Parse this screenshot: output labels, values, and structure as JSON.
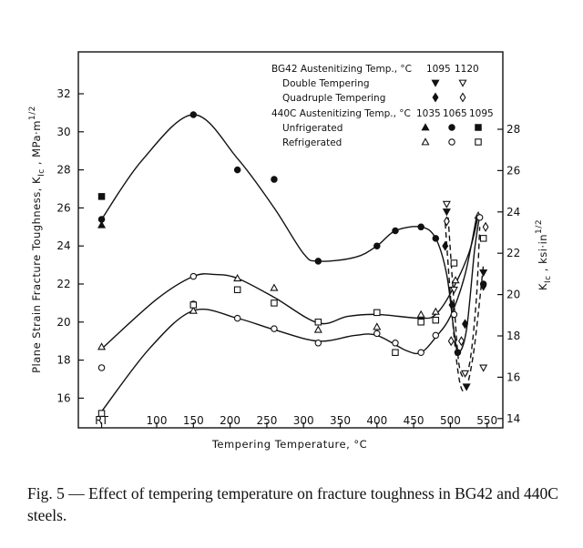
{
  "chart_data": {
    "type": "scatter",
    "title": "",
    "xlabel": "Tempering Temperature, °C",
    "ylabel": {
      "main": "Plane Strain Fracture Toughness, K",
      "sub": "Ic",
      "unit": " , MPa·m",
      "sup": "1/2"
    },
    "ylabel_right": {
      "main": "K",
      "sub": "Ic",
      "unit": " , ksi·in",
      "sup": "1/2"
    },
    "xlim": [
      0,
      560
    ],
    "ylim": [
      14.5,
      34.5
    ],
    "x_ticks": [
      {
        "v": 25,
        "label": "RT"
      },
      {
        "v": 100,
        "label": "100"
      },
      {
        "v": 150,
        "label": "150"
      },
      {
        "v": 200,
        "label": "200"
      },
      {
        "v": 250,
        "label": "250"
      },
      {
        "v": 300,
        "label": "300"
      },
      {
        "v": 350,
        "label": "350"
      },
      {
        "v": 400,
        "label": "400"
      },
      {
        "v": 450,
        "label": "450"
      },
      {
        "v": 500,
        "label": "500"
      },
      {
        "v": 550,
        "label": "550"
      }
    ],
    "y_ticks": [
      16,
      18,
      20,
      22,
      24,
      26,
      28,
      30,
      32
    ],
    "y_right_ticks": [
      14,
      16,
      18,
      20,
      22,
      24,
      26,
      28
    ],
    "legend": {
      "placement": "top-right",
      "bg42_header": "BG42  Austenitizing  Temp., °C",
      "bg42_cols": [
        "1095",
        "1120"
      ],
      "bg42_rows": [
        {
          "label": "Double Tempering",
          "markers": [
            "nabla-filled",
            "nabla-open"
          ]
        },
        {
          "label": "Quadruple Tempering",
          "markers": [
            "diamond-filled",
            "diamond-open"
          ]
        }
      ],
      "c440_header": "440C  Austenitizing  Temp., °C",
      "c440_cols": [
        "1035",
        "1065",
        "1095"
      ],
      "c440_rows": [
        {
          "label": "Unfrigerated",
          "markers": [
            "triangle-filled",
            "circle-filled",
            "square-filled"
          ]
        },
        {
          "label": "Refrigerated",
          "markers": [
            "triangle-open",
            "circle-open",
            "square-open"
          ]
        }
      ]
    },
    "series": [
      {
        "name": "440C 1035 Unfrigerated",
        "marker": "triangle-filled",
        "points": [
          [
            25,
            25.1
          ]
        ]
      },
      {
        "name": "440C 1065 Unfrigerated",
        "marker": "circle-filled",
        "points": [
          [
            25,
            25.4
          ],
          [
            150,
            30.9
          ],
          [
            210,
            28.0
          ],
          [
            260,
            27.5
          ],
          [
            320,
            23.2
          ],
          [
            400,
            24.0
          ],
          [
            425,
            24.8
          ],
          [
            460,
            25.0
          ],
          [
            480,
            24.4
          ],
          [
            510,
            18.4
          ],
          [
            545,
            22.0
          ]
        ]
      },
      {
        "name": "440C 1095 Unfrigerated",
        "marker": "square-filled",
        "points": [
          [
            25,
            26.6
          ]
        ]
      },
      {
        "name": "440C 1035 Refrigerated",
        "marker": "triangle-open",
        "points": [
          [
            25,
            18.7
          ],
          [
            150,
            20.6
          ],
          [
            210,
            22.3
          ],
          [
            260,
            21.8
          ],
          [
            320,
            19.6
          ],
          [
            400,
            19.75
          ],
          [
            460,
            20.4
          ],
          [
            480,
            20.55
          ],
          [
            507,
            22.2
          ],
          [
            538,
            25.6
          ]
        ]
      },
      {
        "name": "440C 1065 Refrigerated",
        "marker": "circle-open",
        "points": [
          [
            25,
            17.6
          ],
          [
            150,
            22.4
          ],
          [
            150,
            20.95
          ],
          [
            210,
            20.2
          ],
          [
            260,
            19.65
          ],
          [
            320,
            18.9
          ],
          [
            400,
            19.4
          ],
          [
            425,
            18.9
          ],
          [
            460,
            18.4
          ],
          [
            480,
            19.3
          ],
          [
            505,
            20.4
          ],
          [
            540,
            25.5
          ]
        ]
      },
      {
        "name": "440C 1095 Refrigerated",
        "marker": "square-open",
        "points": [
          [
            25,
            15.2
          ],
          [
            150,
            20.9
          ],
          [
            210,
            21.7
          ],
          [
            260,
            21.0
          ],
          [
            320,
            20.0
          ],
          [
            400,
            20.5
          ],
          [
            425,
            18.4
          ],
          [
            460,
            20.0
          ],
          [
            480,
            20.1
          ],
          [
            505,
            23.1
          ],
          [
            545,
            24.4
          ]
        ]
      },
      {
        "name": "BG42 1095 Double Tempering",
        "marker": "nabla-filled",
        "points": [
          [
            495,
            25.8
          ],
          [
            522,
            16.6
          ],
          [
            545,
            22.6
          ]
        ]
      },
      {
        "name": "BG42 1120 Double Tempering",
        "marker": "nabla-open",
        "points": [
          [
            495,
            26.2
          ],
          [
            505,
            21.7
          ],
          [
            520,
            17.3
          ],
          [
            545,
            17.6
          ]
        ]
      },
      {
        "name": "BG42 1095 Quadruple Tempering",
        "marker": "diamond-filled",
        "points": [
          [
            493,
            24.0
          ],
          [
            502,
            20.9
          ],
          [
            520,
            19.9
          ],
          [
            545,
            21.9
          ]
        ]
      },
      {
        "name": "BG42 1120 Quadruple Tempering",
        "marker": "diamond-open",
        "points": [
          [
            495,
            25.3
          ],
          [
            501,
            19.0
          ],
          [
            515,
            19.0
          ],
          [
            548,
            25.0
          ]
        ]
      }
    ],
    "curves": [
      {
        "name": "440C unfrigerated fit",
        "style": "solid",
        "points": [
          [
            25,
            25.4
          ],
          [
            80,
            28.5
          ],
          [
            150,
            30.9
          ],
          [
            210,
            28.6
          ],
          [
            260,
            26.0
          ],
          [
            300,
            23.6
          ],
          [
            320,
            23.2
          ],
          [
            370,
            23.4
          ],
          [
            400,
            24.0
          ],
          [
            425,
            24.8
          ],
          [
            460,
            25.0
          ],
          [
            480,
            24.4
          ],
          [
            495,
            22.5
          ],
          [
            505,
            19.5
          ],
          [
            511,
            18.4
          ],
          [
            522,
            19.6
          ],
          [
            533,
            23.8
          ],
          [
            540,
            25.6
          ]
        ]
      },
      {
        "name": "440C refrigerated upper fit",
        "style": "solid",
        "points": [
          [
            28,
            18.7
          ],
          [
            100,
            21.2
          ],
          [
            150,
            22.4
          ],
          [
            180,
            22.5
          ],
          [
            210,
            22.3
          ],
          [
            260,
            21.3
          ],
          [
            320,
            19.95
          ],
          [
            360,
            20.3
          ],
          [
            400,
            20.4
          ],
          [
            460,
            20.2
          ],
          [
            480,
            20.4
          ],
          [
            500,
            21.5
          ],
          [
            525,
            23.6
          ],
          [
            538,
            25.6
          ]
        ]
      },
      {
        "name": "440C refrigerated lower fit",
        "style": "solid",
        "points": [
          [
            25,
            15.3
          ],
          [
            90,
            18.6
          ],
          [
            150,
            20.6
          ],
          [
            210,
            20.2
          ],
          [
            260,
            19.6
          ],
          [
            320,
            19.0
          ],
          [
            370,
            19.3
          ],
          [
            400,
            19.3
          ],
          [
            440,
            18.5
          ],
          [
            460,
            18.4
          ],
          [
            480,
            19.2
          ],
          [
            500,
            20.3
          ],
          [
            520,
            22.5
          ],
          [
            536,
            25.6
          ]
        ]
      },
      {
        "name": "BG42 1120 fit",
        "style": "dashed",
        "points": [
          [
            497,
            25.5
          ],
          [
            505,
            21.0
          ],
          [
            513,
            17.5
          ],
          [
            525,
            17.6
          ],
          [
            535,
            21.0
          ],
          [
            540,
            25.0
          ]
        ]
      },
      {
        "name": "BG42 1095 fit",
        "style": "dashed",
        "points": [
          [
            493,
            25.2
          ],
          [
            502,
            20.5
          ],
          [
            512,
            17.0
          ],
          [
            521,
            16.5
          ],
          [
            532,
            18.5
          ],
          [
            545,
            23.0
          ]
        ]
      }
    ]
  },
  "caption": "Fig. 5 — Effect of tempering temperature on fracture toughness in BG42 and 440C steels."
}
